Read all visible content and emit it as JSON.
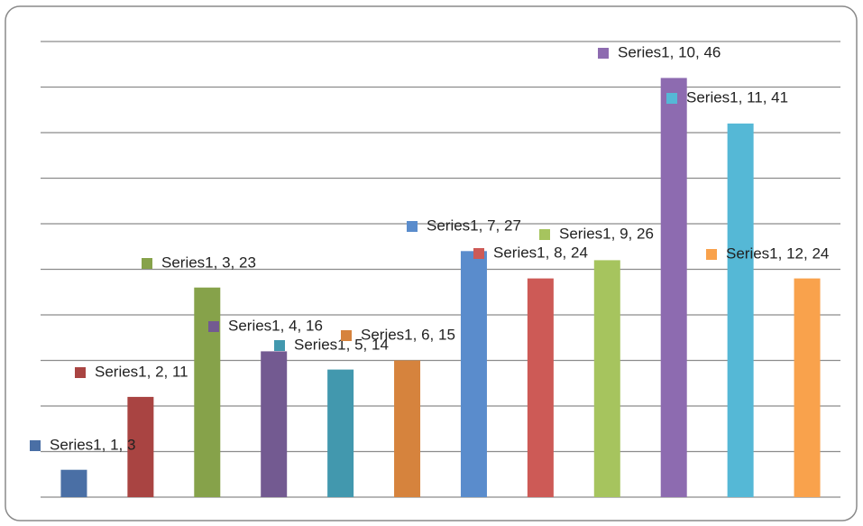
{
  "chart_data": {
    "type": "bar",
    "values": [
      3,
      11,
      23,
      16,
      14,
      15,
      27,
      24,
      26,
      46,
      41,
      24
    ],
    "value_labels": [
      "Series1, 1, 3",
      "Series1, 2, 11",
      "Series1, 3, 23",
      "Series1, 4, 16",
      "Series1, 5, 14",
      "Series1, 6, 15",
      "Series1, 7, 27",
      "Series1, 8, 24",
      "Series1, 9, 26",
      "Series1, 10, 46",
      "Series1, 11, 41",
      "Series1, 12, 24"
    ],
    "colors": [
      "#4a6fa5",
      "#a94442",
      "#86a24a",
      "#735a91",
      "#4298ae",
      "#d6833d",
      "#5a8ccc",
      "#cd5a56",
      "#a6c45e",
      "#8d6bb0",
      "#55b8d6",
      "#f9a24c"
    ],
    "ylim": [
      0,
      50
    ],
    "yticks": [
      0,
      5,
      10,
      15,
      20,
      25,
      30,
      35,
      40,
      45,
      50
    ],
    "grid": true
  }
}
